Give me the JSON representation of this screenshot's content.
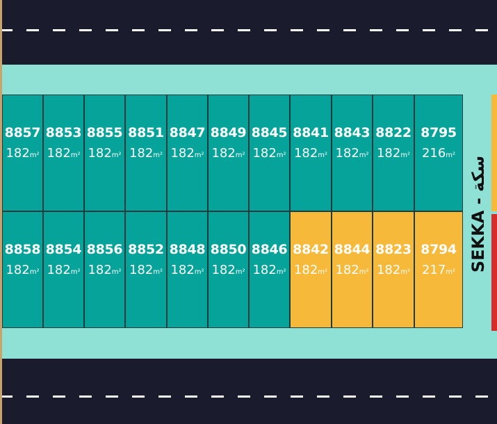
{
  "street_label": "SEKKA - سكة",
  "area_unit": "m²",
  "top_row": [
    {
      "id": "8857",
      "area": "182",
      "status": "available"
    },
    {
      "id": "8853",
      "area": "182",
      "status": "available"
    },
    {
      "id": "8855",
      "area": "182",
      "status": "available"
    },
    {
      "id": "8851",
      "area": "182",
      "status": "available"
    },
    {
      "id": "8847",
      "area": "182",
      "status": "available"
    },
    {
      "id": "8849",
      "area": "182",
      "status": "available"
    },
    {
      "id": "8845",
      "area": "182",
      "status": "available"
    },
    {
      "id": "8841",
      "area": "182",
      "status": "available"
    },
    {
      "id": "8843",
      "area": "182",
      "status": "available"
    },
    {
      "id": "8822",
      "area": "182",
      "status": "available"
    },
    {
      "id": "8795",
      "area": "216",
      "status": "available"
    }
  ],
  "bottom_row": [
    {
      "id": "8858",
      "area": "182",
      "status": "available"
    },
    {
      "id": "8854",
      "area": "182",
      "status": "available"
    },
    {
      "id": "8856",
      "area": "182",
      "status": "available"
    },
    {
      "id": "8852",
      "area": "182",
      "status": "available"
    },
    {
      "id": "8848",
      "area": "182",
      "status": "available"
    },
    {
      "id": "8850",
      "area": "182",
      "status": "available"
    },
    {
      "id": "8846",
      "area": "182",
      "status": "available"
    },
    {
      "id": "8842",
      "area": "182",
      "status": "reserved"
    },
    {
      "id": "8844",
      "area": "182",
      "status": "reserved"
    },
    {
      "id": "8823",
      "area": "182",
      "status": "reserved"
    },
    {
      "id": "8794",
      "area": "217",
      "status": "reserved"
    }
  ],
  "colors": {
    "road": "#1a1c2e",
    "sidewalk": "#8fe1d6",
    "available": "#05a399",
    "reserved": "#f6b93a",
    "neighbor_red": "#d92b2b"
  }
}
